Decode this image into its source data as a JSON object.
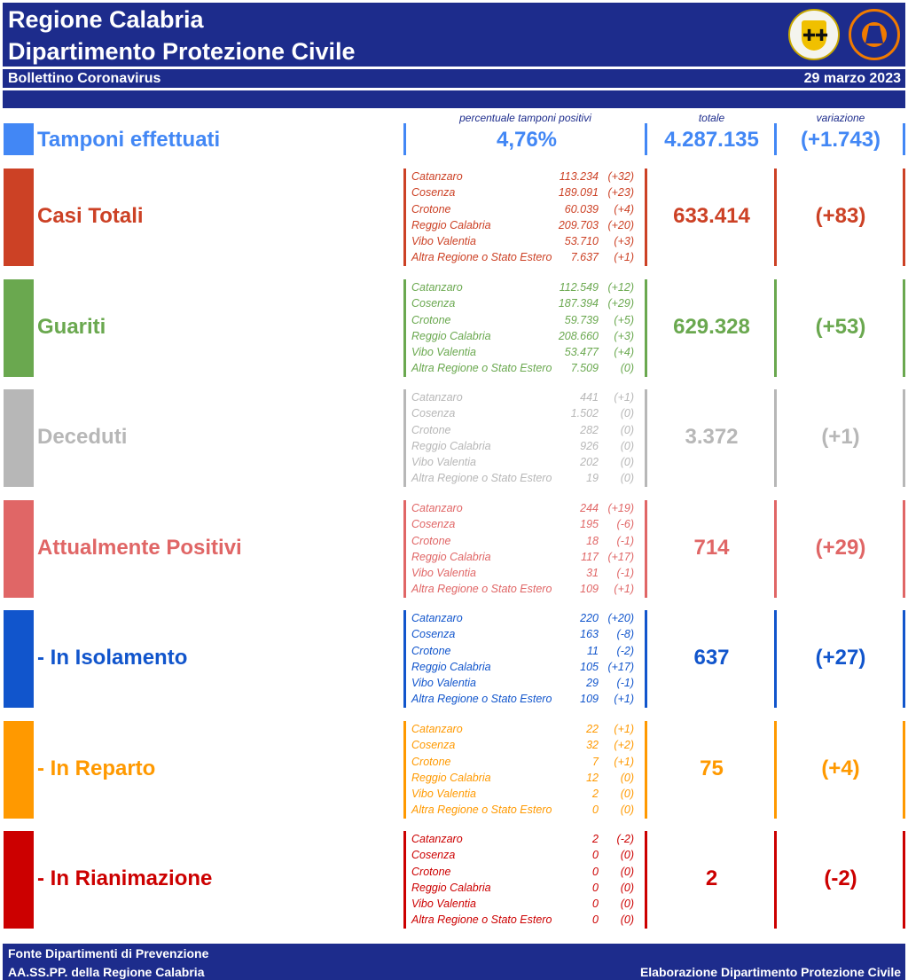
{
  "header": {
    "title_line1": "Regione Calabria",
    "title_line2": "Dipartimento Protezione Civile",
    "bulletin": "Bollettino Coronavirus",
    "date": "29 marzo 2023"
  },
  "columns": {
    "percent_header": "percentuale tamponi positivi",
    "total_header": "totale",
    "variation_header": "variazione"
  },
  "tamponi": {
    "label": "Tamponi effettuati",
    "percent": "4,76%",
    "total": "4.287.135",
    "variation": "(+1.743)",
    "color": "#4287f5"
  },
  "sections": [
    {
      "label": "Casi Totali",
      "color": "#cc4125",
      "total": "633.414",
      "variation": "(+83)",
      "provinces": [
        {
          "name": "Catanzaro",
          "value": "113.234",
          "delta": "(+32)"
        },
        {
          "name": "Cosenza",
          "value": "189.091",
          "delta": "(+23)"
        },
        {
          "name": "Crotone",
          "value": "60.039",
          "delta": "(+4)"
        },
        {
          "name": "Reggio Calabria",
          "value": "209.703",
          "delta": "(+20)"
        },
        {
          "name": "Vibo Valentia",
          "value": "53.710",
          "delta": "(+3)"
        },
        {
          "name": "Altra Regione o Stato Estero",
          "value": "7.637",
          "delta": "(+1)"
        }
      ]
    },
    {
      "label": "Guariti",
      "color": "#6aa84f",
      "total": "629.328",
      "variation": "(+53)",
      "provinces": [
        {
          "name": "Catanzaro",
          "value": "112.549",
          "delta": "(+12)"
        },
        {
          "name": "Cosenza",
          "value": "187.394",
          "delta": "(+29)"
        },
        {
          "name": "Crotone",
          "value": "59.739",
          "delta": "(+5)"
        },
        {
          "name": "Reggio Calabria",
          "value": "208.660",
          "delta": "(+3)"
        },
        {
          "name": "Vibo Valentia",
          "value": "53.477",
          "delta": "(+4)"
        },
        {
          "name": "Altra Regione o Stato Estero",
          "value": "7.509",
          "delta": "(0)"
        }
      ]
    },
    {
      "label": "Deceduti",
      "color": "#b7b7b7",
      "total": "3.372",
      "variation": "(+1)",
      "provinces": [
        {
          "name": "Catanzaro",
          "value": "441",
          "delta": "(+1)"
        },
        {
          "name": "Cosenza",
          "value": "1.502",
          "delta": "(0)"
        },
        {
          "name": "Crotone",
          "value": "282",
          "delta": "(0)"
        },
        {
          "name": "Reggio Calabria",
          "value": "926",
          "delta": "(0)"
        },
        {
          "name": "Vibo Valentia",
          "value": "202",
          "delta": "(0)"
        },
        {
          "name": "Altra Regione o Stato Estero",
          "value": "19",
          "delta": "(0)"
        }
      ]
    },
    {
      "label": "Attualmente Positivi",
      "color": "#e06666",
      "total": "714",
      "variation": "(+29)",
      "provinces": [
        {
          "name": "Catanzaro",
          "value": "244",
          "delta": "(+19)"
        },
        {
          "name": "Cosenza",
          "value": "195",
          "delta": "(-6)"
        },
        {
          "name": "Crotone",
          "value": "18",
          "delta": "(-1)"
        },
        {
          "name": "Reggio Calabria",
          "value": "117",
          "delta": "(+17)"
        },
        {
          "name": "Vibo Valentia",
          "value": "31",
          "delta": "(-1)"
        },
        {
          "name": "Altra Regione o Stato Estero",
          "value": "109",
          "delta": "(+1)"
        }
      ]
    },
    {
      "label": " - In Isolamento",
      "color": "#1155cc",
      "total": "637",
      "variation": "(+27)",
      "provinces": [
        {
          "name": "Catanzaro",
          "value": "220",
          "delta": "(+20)"
        },
        {
          "name": "Cosenza",
          "value": "163",
          "delta": "(-8)"
        },
        {
          "name": "Crotone",
          "value": "11",
          "delta": "(-2)"
        },
        {
          "name": "Reggio Calabria",
          "value": "105",
          "delta": "(+17)"
        },
        {
          "name": "Vibo Valentia",
          "value": "29",
          "delta": "(-1)"
        },
        {
          "name": "Altra Regione o Stato Estero",
          "value": "109",
          "delta": "(+1)"
        }
      ]
    },
    {
      "label": " - In Reparto",
      "color": "#ff9900",
      "total": "75",
      "variation": "(+4)",
      "provinces": [
        {
          "name": "Catanzaro",
          "value": "22",
          "delta": "(+1)"
        },
        {
          "name": "Cosenza",
          "value": "32",
          "delta": "(+2)"
        },
        {
          "name": "Crotone",
          "value": "7",
          "delta": "(+1)"
        },
        {
          "name": "Reggio Calabria",
          "value": "12",
          "delta": "(0)"
        },
        {
          "name": "Vibo Valentia",
          "value": "2",
          "delta": "(0)"
        },
        {
          "name": "Altra Regione o Stato Estero",
          "value": "0",
          "delta": "(0)"
        }
      ]
    },
    {
      "label": " - In Rianimazione",
      "color": "#cc0000",
      "total": "2",
      "variation": "(-2)",
      "provinces": [
        {
          "name": "Catanzaro",
          "value": "2",
          "delta": "(-2)"
        },
        {
          "name": "Cosenza",
          "value": "0",
          "delta": "(0)"
        },
        {
          "name": "Crotone",
          "value": "0",
          "delta": "(0)"
        },
        {
          "name": "Reggio Calabria",
          "value": "0",
          "delta": "(0)"
        },
        {
          "name": "Vibo Valentia",
          "value": "0",
          "delta": "(0)"
        },
        {
          "name": "Altra Regione o Stato Estero",
          "value": "0",
          "delta": "(0)"
        }
      ]
    }
  ],
  "footer": {
    "source_line1": "Fonte Dipartimenti di Prevenzione",
    "source_line2": "AA.SS.PP.  della Regione Calabria",
    "credit": "Elaborazione Dipartimento Protezione Civile"
  }
}
